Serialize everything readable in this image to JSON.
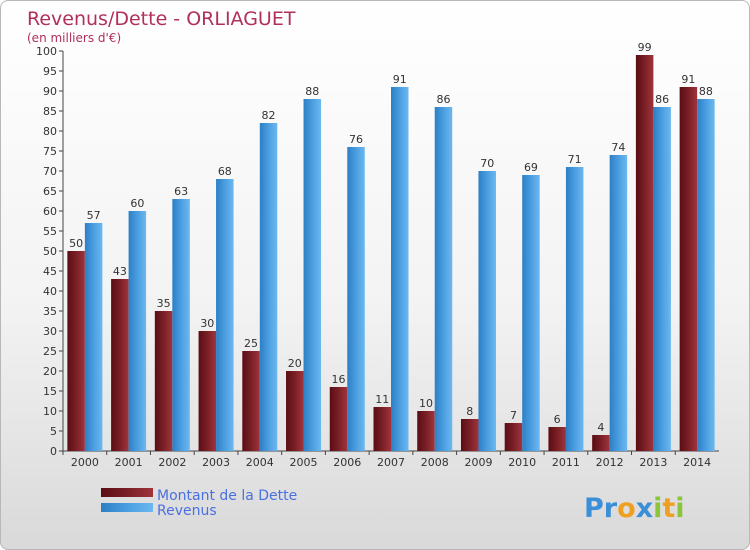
{
  "chart_data": {
    "type": "bar",
    "title": "Revenus/Dette - ORLIAGUET",
    "subtitle": "(en milliers d'€)",
    "categories": [
      "2000",
      "2001",
      "2002",
      "2003",
      "2004",
      "2005",
      "2006",
      "2007",
      "2008",
      "2009",
      "2010",
      "2011",
      "2012",
      "2013",
      "2014"
    ],
    "series": [
      {
        "name": "Montant de la Dette",
        "color": "#7a1f26",
        "values": [
          50,
          43,
          35,
          30,
          25,
          20,
          16,
          11,
          10,
          8,
          7,
          6,
          4,
          99,
          91
        ]
      },
      {
        "name": "Revenus",
        "color": "#4a9ee0",
        "values": [
          57,
          60,
          63,
          68,
          82,
          88,
          76,
          91,
          86,
          70,
          69,
          71,
          74,
          86,
          88
        ]
      }
    ],
    "ylim": [
      0,
      100
    ],
    "ytick_step": 5,
    "grid": false,
    "legend_position": "bottom-left"
  },
  "logo": {
    "letters": [
      {
        "ch": "P",
        "color": "#3a8fd8"
      },
      {
        "ch": "r",
        "color": "#3a8fd8"
      },
      {
        "ch": "o",
        "color": "#f0a020"
      },
      {
        "ch": "x",
        "color": "#3a8fd8"
      },
      {
        "ch": "i",
        "color": "#8cc43c"
      },
      {
        "ch": "t",
        "color": "#f0a020"
      },
      {
        "ch": "i",
        "color": "#8cc43c"
      }
    ]
  }
}
